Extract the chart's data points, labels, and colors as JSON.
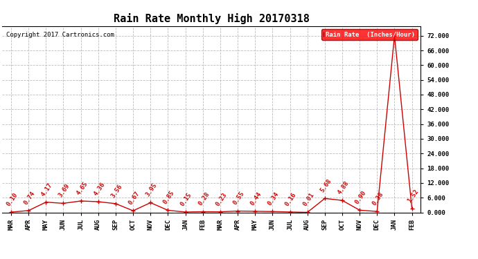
{
  "title": "Rain Rate Monthly High 20170318",
  "copyright": "Copyright 2017 Cartronics.com",
  "legend_label": "Rain Rate  (Inches/Hour)",
  "x_labels": [
    "MAR",
    "APR",
    "MAY",
    "JUN",
    "JUL",
    "AUG",
    "SEP",
    "OCT",
    "NOV",
    "DEC",
    "JAN",
    "FEB",
    "MAR",
    "APR",
    "MAY",
    "JUN",
    "JUL",
    "AUG",
    "SEP",
    "OCT",
    "NOV",
    "DEC",
    "JAN",
    "FEB"
  ],
  "values": [
    0.1,
    0.74,
    4.17,
    3.69,
    4.65,
    4.36,
    3.56,
    0.67,
    3.95,
    0.85,
    0.15,
    0.28,
    0.23,
    0.55,
    0.44,
    0.34,
    0.16,
    0.01,
    5.68,
    4.88,
    0.9,
    0.38,
    72.0,
    1.52
  ],
  "ylim": [
    0,
    76.0
  ],
  "yticks": [
    0.0,
    6.0,
    12.0,
    18.0,
    24.0,
    30.0,
    36.0,
    42.0,
    48.0,
    54.0,
    60.0,
    66.0,
    72.0
  ],
  "line_color": "#cc0000",
  "marker_color": "#cc0000",
  "bg_color": "#ffffff",
  "grid_color": "#bbbbbb",
  "title_fontsize": 11,
  "label_fontsize": 6.5,
  "annot_fontsize": 6.5,
  "copyright_fontsize": 6.5,
  "annot_rotation": 55
}
